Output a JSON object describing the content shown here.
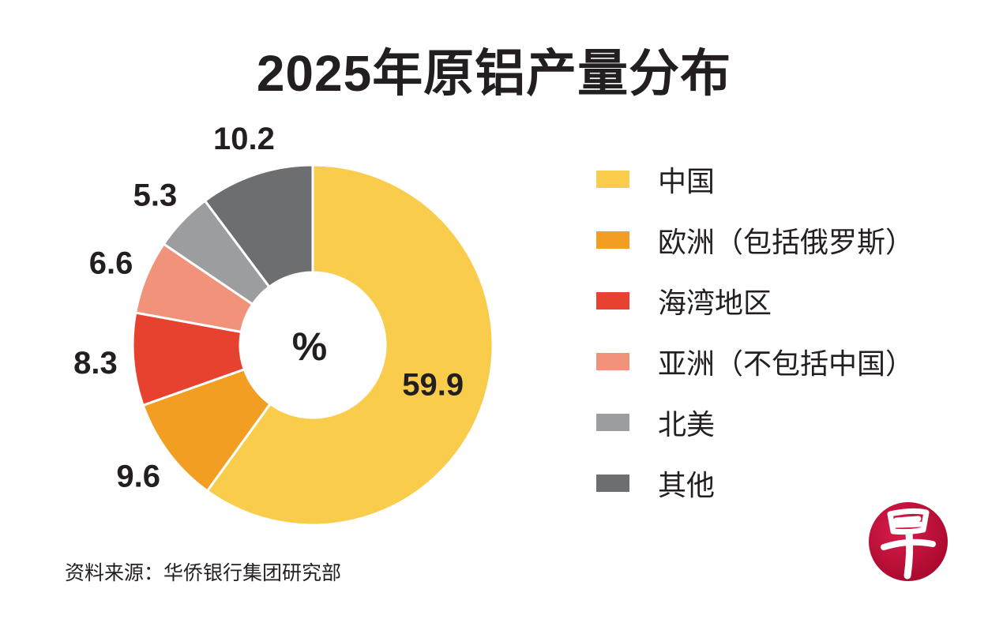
{
  "title": "2025年原铝产量分布",
  "source": "资料来源：华侨银行集团研究部",
  "logo_text": "早",
  "chart_data": {
    "type": "pie",
    "subtype": "donut",
    "title": "2025年原铝产量分布",
    "center_label": "%",
    "unit": "%",
    "categories": [
      "中国",
      "欧洲（包括俄罗斯）",
      "海湾地区",
      "亚洲（不包括中国）",
      "北美",
      "其他"
    ],
    "values": [
      59.9,
      9.6,
      8.3,
      6.6,
      5.3,
      10.2
    ],
    "value_labels": [
      "59.9",
      "9.6",
      "8.3",
      "6.6",
      "5.3",
      "10.2"
    ],
    "colors": [
      "#F9CD4B",
      "#F29E22",
      "#E7422F",
      "#F1937A",
      "#9C9D9F",
      "#6D6E70"
    ],
    "start": "top",
    "direction": "clockwise",
    "legend_position": "right"
  }
}
